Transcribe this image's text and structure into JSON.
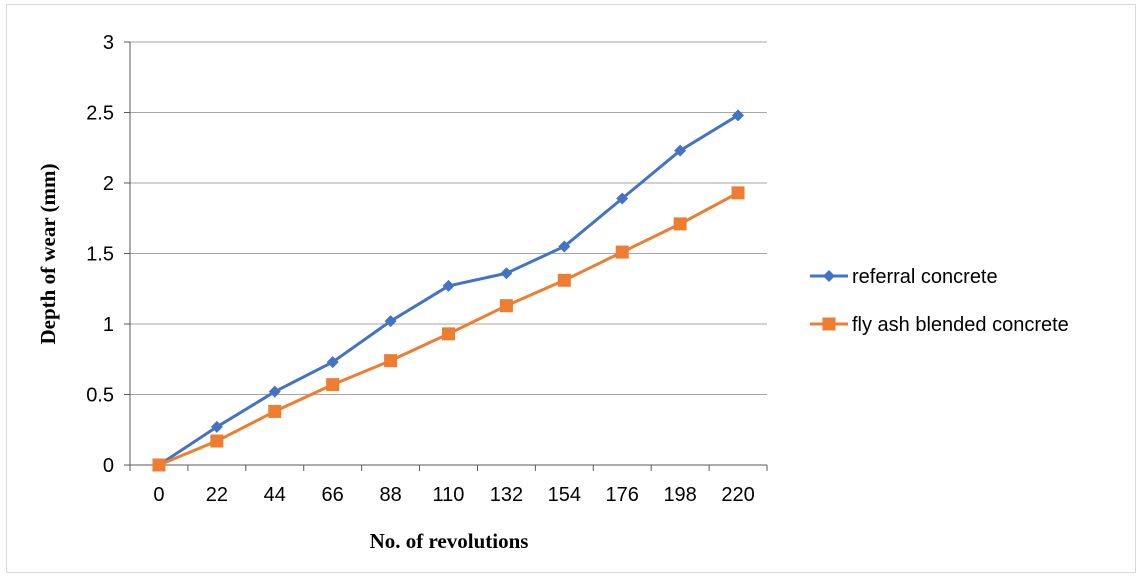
{
  "chart_data": {
    "type": "line",
    "title": "",
    "xlabel": "No. of revolutions",
    "ylabel": "Depth of wear (mm)",
    "categories": [
      "0",
      "22",
      "44",
      "66",
      "88",
      "110",
      "132",
      "154",
      "176",
      "198",
      "220"
    ],
    "ylim": [
      0,
      3
    ],
    "yticks": [
      "0",
      "0.5",
      "1",
      "1.5",
      "2",
      "2.5",
      "3"
    ],
    "grid": true,
    "legend_position": "right",
    "series": [
      {
        "name": "referral concrete",
        "color": "#4472C4",
        "marker": "diamond",
        "values": [
          0,
          0.27,
          0.52,
          0.73,
          1.02,
          1.27,
          1.36,
          1.55,
          1.89,
          2.23,
          2.48
        ]
      },
      {
        "name": "fly ash blended concrete",
        "color": "#ED7D31",
        "marker": "square",
        "values": [
          0,
          0.17,
          0.38,
          0.57,
          0.74,
          0.93,
          1.13,
          1.31,
          1.51,
          1.71,
          1.93
        ]
      }
    ]
  }
}
